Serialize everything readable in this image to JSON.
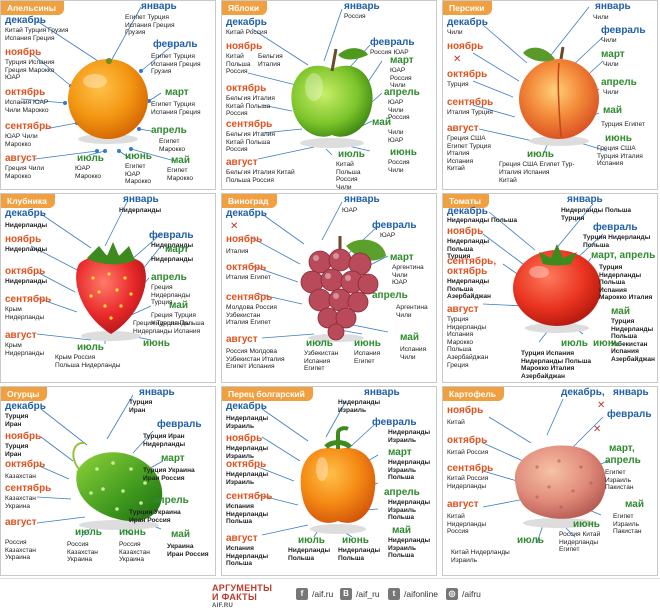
{
  "footer": {
    "logo_line1": "АРГУМЕНТЫ",
    "logo_line2": "И ФАКТЫ",
    "logo_sub": "AIF.RU",
    "links": [
      {
        "icon": "facebook-icon",
        "glyph": "f",
        "label": "/aif.ru"
      },
      {
        "icon": "vk-icon",
        "glyph": "B",
        "label": "/aif_ru"
      },
      {
        "icon": "twitter-icon",
        "glyph": "t",
        "label": "/aifonline"
      },
      {
        "icon": "instagram-icon",
        "glyph": "◎",
        "label": "/aifru"
      }
    ]
  },
  "colors": {
    "winter": "#1f5fa8",
    "summer": "#2e8b2e",
    "autumn": "#e0531f",
    "title_bg": "#f0a040"
  },
  "panels": [
    {
      "title": "Апельсины",
      "months": {
        "jan": "январь",
        "feb": "февраль",
        "mar": "март",
        "apr": "апрель",
        "may": "май",
        "jun": "июнь",
        "jul": "июль",
        "aug": "август",
        "sep": "сентябрь",
        "oct": "октябрь",
        "nov": "ноябрь",
        "dec": "декабрь"
      },
      "lists": {
        "dec": "Китай Турция Грузия\nИспания Греция",
        "jan": "Египет Турция\nИспания Греция\nГрузия",
        "nov": "Турция Испания\nГреция Марокко\nЮАР",
        "feb": "Египет Турция\nИспания Греция\nГрузия",
        "oct": "Испания ЮАР\nЧили Марокко",
        "mar": "Египет Турция\nИспания Греция",
        "sep": "ЮАР Чили\nМарокко",
        "apr": "Египет\nМарокко",
        "aug": "Греция Чили\nМарокко",
        "jul": "ЮАР\nМарокко",
        "jun": "Египет\nЮАР\nМарокко",
        "may": "Египет\nМарокко"
      }
    },
    {
      "title": "Яблоки",
      "months": {
        "jan": "январь",
        "feb": "февраль",
        "mar": "март",
        "apr": "апрель",
        "may": "май",
        "jun": "июнь",
        "jul": "июль",
        "aug": "август",
        "sep": "сентябрь",
        "oct": "октябрь",
        "nov": "ноябрь",
        "dec": "декабрь"
      },
      "lists": {
        "jan": "Россия",
        "dec": "Китай Россия",
        "nov": "Китай\nПольша\nРоссия",
        "nov2": "Бельгия\nИталия",
        "feb": "Россия ЮАР",
        "oct": "Бельгия Италия\nКитай Польша\nРоссия",
        "mar": "ЮАР\nРоссия\nЧили",
        "apr": "ЮАР\nЧили\nРоссия",
        "sep": "Бельгия Италия\nКитай Польша\nРоссия",
        "may": "Чили\nЮАР",
        "aug": "Бельгия Италия Китай\nПольша Россия",
        "jul": "Китай\nПольша\nРоссия\nЧили",
        "jun": "Россия\nЧили"
      }
    },
    {
      "title": "Персики",
      "months": {
        "jan": "январь",
        "feb": "февраль",
        "mar": "март",
        "apr": "апрель",
        "may": "май",
        "jun": "июнь",
        "jul": "июль",
        "aug": "август",
        "sep": "сентябрь",
        "oct": "октябрь",
        "nov": "ноябрь",
        "dec": "декабрь"
      },
      "lists": {
        "jan": "Чили",
        "dec": "Чили",
        "feb": "Чили",
        "mar": "Чили",
        "oct": "Турция",
        "apr": "Чили",
        "sep": "Италия Турция",
        "may": "Турция Египет",
        "aug": "Греция США\nЕгипет Турция\nИталия\nИспания\nКитай",
        "jun": "Греция США\nТурция Италия\nИспания",
        "jul": "Греция США Египет Тур-\nИталия Испания",
        "jul2": "Китай"
      }
    },
    {
      "title": "Клубника",
      "months": {
        "jan": "январь",
        "feb": "февраль",
        "mar": "март",
        "apr": "апрель",
        "may": "май",
        "jun": "июнь",
        "jul": "июль",
        "aug": "август",
        "sep": "сентябрь",
        "oct": "октябрь",
        "nov": "ноябрь",
        "dec": "декабрь"
      },
      "lists": {
        "jan": "Нидерланды",
        "dec": "Нидерланды",
        "feb": "Нидерланды",
        "nov": "Нидерланды",
        "mar": "Нидерланды",
        "oct": "Нидерланды",
        "apr": "Греция\nНидерланды\nТурция",
        "sep": "Крым\nНидерланды",
        "may": "Греция Турция\nНидерланды",
        "aug": "Крым\nНидерланды",
        "jun": "Греция Турция Польша\nНидерланды Испания",
        "jul": "Крым Россия\nПольша Нидерланды"
      }
    },
    {
      "title": "Виноград",
      "months": {
        "jan": "январь",
        "feb": "февраль",
        "mar": "март",
        "apr": "апрель",
        "may": "май",
        "jun": "июнь",
        "jul": "июль",
        "aug": "август",
        "sep": "сентябрь",
        "oct": "октябрь",
        "nov": "ноябрь",
        "dec": "декабрь"
      },
      "lists": {
        "jan": "ЮАР",
        "feb": "ЮАР",
        "nov": "Италия",
        "mar": "Аргентина\nЧили\nЮАР",
        "oct": "Италия Египет",
        "apr": "Аргентина\nЧили",
        "sep": "Молдова Россия\nУзбекистан\nИталия Египет",
        "may": "Испания\nЧили",
        "aug": "Россия Молдова\nУзбекистан Италия\nЕгипет Испания",
        "jul": "Узбекистан\nИспания\nЕгипет",
        "jun": "Испания\nЕгипет"
      }
    },
    {
      "title": "Томаты",
      "months": {
        "jan": "январь",
        "feb": "февраль",
        "mar": "март, апрель",
        "apr": "",
        "may": "май",
        "jun": "июнь",
        "jul": "июль",
        "aug": "август",
        "sep": "сентябрь,",
        "oct": "октябрь",
        "nov": "ноябрь",
        "dec": "декабрь"
      },
      "lists": {
        "dec": "Нидерланды Польша",
        "jan": "Нидерланды Польша\nТурция",
        "feb": "Турция Нидерланды\nПольша",
        "nov": "Нидерланды\nПольша\nТурция",
        "sepoct": "Нидерланды\nПольша\nАзербайджан",
        "mar": "Турция\nНидерланды\nПольша\nИспания\nМарокко Италия",
        "aug": "Турция\nНидерланды\nИспания\nМарокко\nПольша\nАзербайджан\nГреция",
        "may": "Турция\nНидерланды\nПольша\nУзбекистан\nИспания\nАзербайджан",
        "jul": "Турция Испания\nНидерланды Польша\nМарокко Италия\nАзербайджан",
        "jun": ""
      }
    },
    {
      "title": "Огурцы",
      "months": {
        "jan": "январь",
        "feb": "февраль",
        "mar": "март",
        "apr": "апрель",
        "may": "май",
        "jun": "июнь",
        "jul": "июль",
        "aug": "август",
        "sep": "сентябрь",
        "oct": "октябрь",
        "nov": "ноябрь",
        "dec": "декабрь"
      },
      "lists": {
        "jan": "Турция\nИран",
        "dec": "Турция\nИран",
        "feb": "Турция Иран\nНидерланды",
        "nov": "Турция\nИран",
        "mar": "Турция Украина\nИран Россия",
        "oct": "Казахстан",
        "sep": "Казахстан\nУкраина",
        "apr": "Турция Украина\nИран Россия",
        "may": "Россия\nУкраина",
        "aug": "Россия\nКазахстан\nУкраина",
        "jul": "Россия\nКазахстан\nУкраина",
        "jun": "Россия\nКазахстан\nУкраина",
        "jun2": "Украина\nИран Россия"
      }
    },
    {
      "title": "Перец болгарский",
      "months": {
        "jan": "январь",
        "feb": "февраль",
        "mar": "март",
        "apr": "апрель",
        "may": "май",
        "jun": "июнь",
        "jul": "июль",
        "aug": "август",
        "sep": "сентябрь",
        "oct": "октябрь",
        "nov": "ноябрь",
        "dec": "декабрь"
      },
      "lists": {
        "jan": "Нидерланды\nИзраиль",
        "dec": "Нидерланды\nИзраиль",
        "feb": "Нидерланды\nИзраиль",
        "nov": "Нидерланды\nИзраиль",
        "mar": "Нидерланды\nИзраиль\nПольша",
        "oct": "Нидерланды\nИзраиль",
        "apr": "Нидерланды\nИзраиль\nПольша",
        "sep": "Испания\nНидерланды\nПольша",
        "may": "Нидерланды\nИзраиль\nПольша",
        "aug": "Испания\nНидерланды\nПольша",
        "jul": "Нидерланды\nПольша",
        "jun": "Нидерланды\nПольша",
        "jun2": "Нидерланды\nПольша"
      }
    },
    {
      "title": "Картофель",
      "months": {
        "jan": "январь",
        "feb": "февраль",
        "mar": "март,",
        "apr": "апрель",
        "may": "май",
        "jun": "июнь",
        "jul": "июль",
        "aug": "август",
        "sep": "сентябрь",
        "oct": "октябрь",
        "nov": "ноябрь",
        "dec": "декабрь,"
      },
      "lists": {
        "nov": "Китай",
        "oct": "Китай Россия",
        "sep": "Китай Россия\nНидерланды",
        "mar": "Египет\nИзраиль\nПакистан",
        "aug": "Китай\nНидерланды\nРоссия",
        "may": "Египет\nИзраиль\nПакистан",
        "jul": "Китай Нидерланды\nИзраиль",
        "jun": "Россия Китай\nНидерланды\nЕгипет"
      }
    }
  ]
}
